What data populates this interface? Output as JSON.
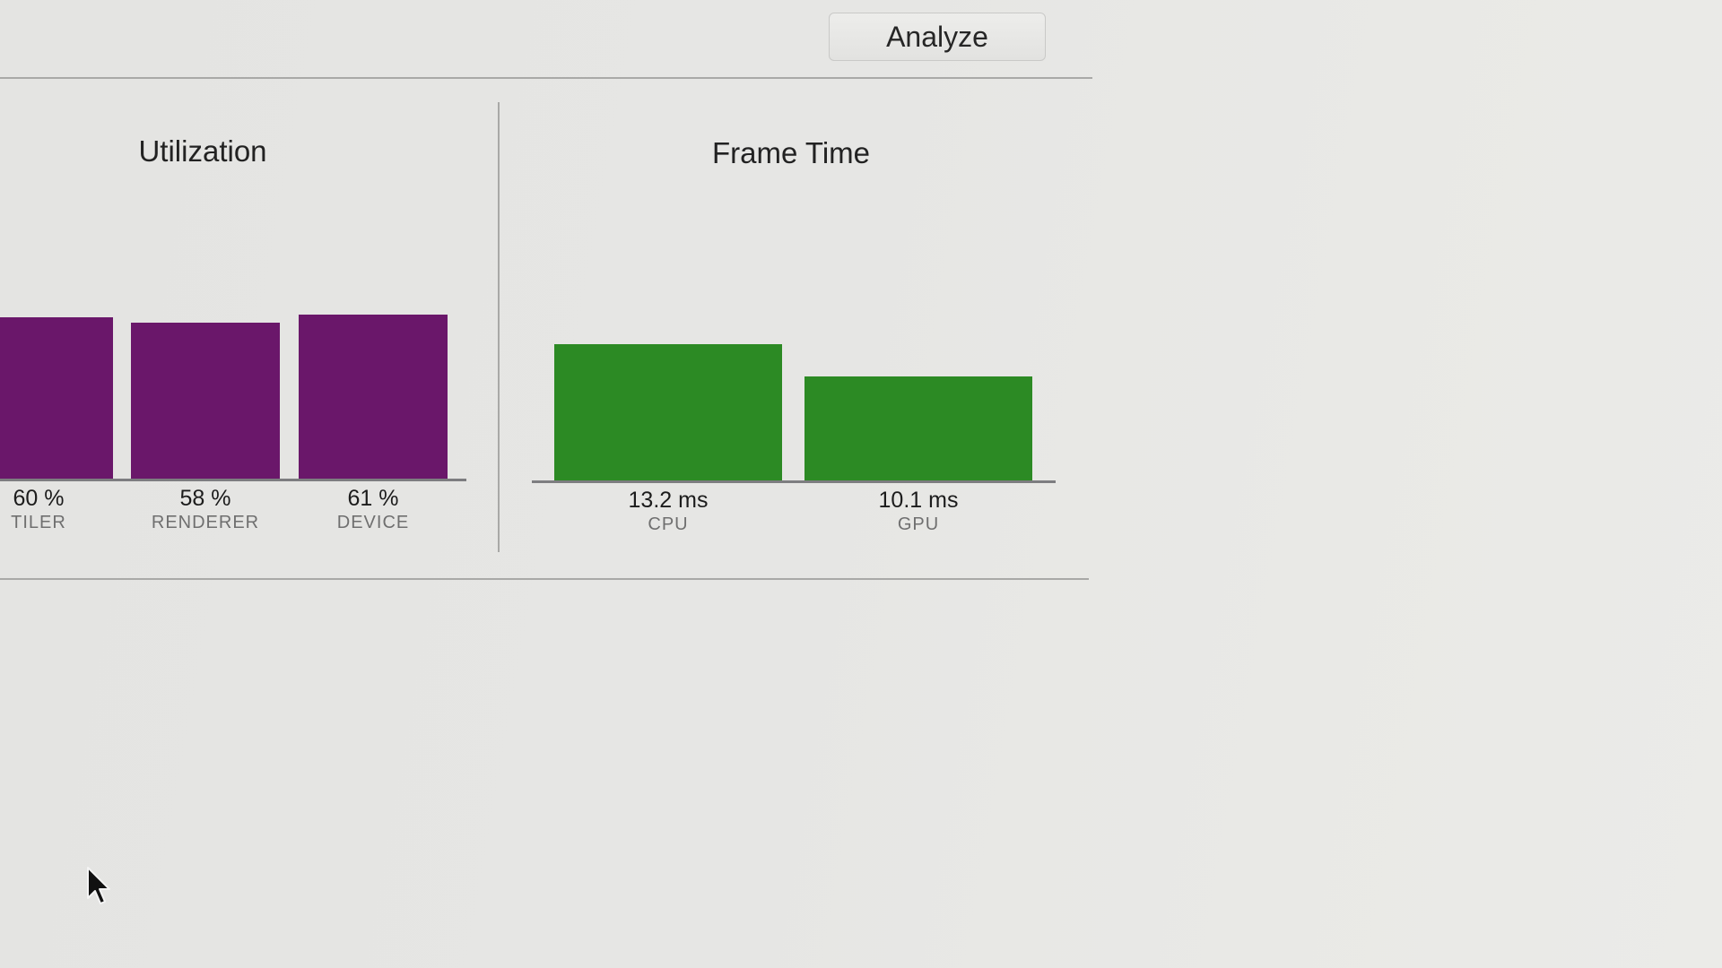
{
  "toolbar": {
    "analyze_label": "Analyze"
  },
  "utilization": {
    "title": "Utilization"
  },
  "frame_time": {
    "title": "Frame Time"
  },
  "chart_data": [
    {
      "type": "bar",
      "title": "Utilization",
      "categories": [
        "TILER",
        "RENDERER",
        "DEVICE"
      ],
      "values": [
        60,
        58,
        61
      ],
      "value_labels": [
        "60 %",
        "58 %",
        "61 %"
      ],
      "unit": "%",
      "ylim": [
        0,
        100
      ],
      "grid": false,
      "color": "#6a176a"
    },
    {
      "type": "bar",
      "title": "Frame Time",
      "categories": [
        "CPU",
        "GPU"
      ],
      "values": [
        13.2,
        10.1
      ],
      "value_labels": [
        "13.2 ms",
        "10.1 ms"
      ],
      "unit": "ms",
      "ylim": [
        0,
        33.3
      ],
      "grid": false,
      "color": "#2c8a24"
    }
  ],
  "icons": {
    "cursor": "arrow-cursor-icon"
  }
}
